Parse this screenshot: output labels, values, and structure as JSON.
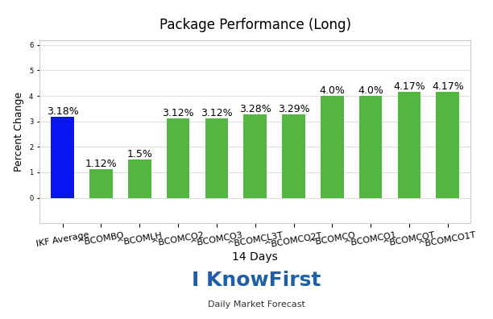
{
  "chart_data": {
    "type": "bar",
    "title": "Package Performance (Long)",
    "x_label": "14 Days",
    "y_label": "Percent Change",
    "categories": [
      "IKF Average",
      "^BCOMBO",
      "^BCOMLH",
      "^BCOMCO2",
      "^BCOMCO3",
      "^BCOMCL3T",
      "^BCOMCO2T",
      "^BCOMCO",
      "^BCOMCO1",
      "^BCOMCOT",
      "^BCOMCO1T"
    ],
    "values": [
      3.18,
      1.12,
      1.5,
      3.12,
      3.12,
      3.28,
      3.29,
      4.0,
      4.0,
      4.17,
      4.17
    ],
    "value_labels": [
      "3.18%",
      "1.12%",
      "1.5%",
      "3.12%",
      "3.12%",
      "3.28%",
      "3.29%",
      "4.0%",
      "4.0%",
      "4.17%",
      "4.17%"
    ],
    "data_labels": true,
    "colors": [
      "#0a14f0",
      "#52b640",
      "#52b640",
      "#52b640",
      "#52b640",
      "#52b640",
      "#52b640",
      "#52b640",
      "#52b640",
      "#52b640",
      "#52b640"
    ],
    "ylim": [
      -1,
      6.2
    ],
    "yticks": [
      0,
      1,
      2,
      3,
      4,
      5,
      6
    ],
    "grid": true,
    "annotations": [
      "I KnowFirst",
      "Daily Market Forecast"
    ]
  }
}
